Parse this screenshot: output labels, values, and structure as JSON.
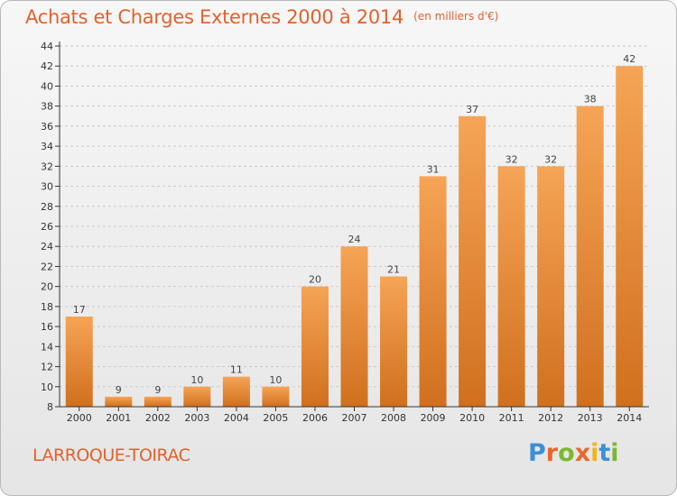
{
  "header": {
    "title": "Achats et Charges Externes 2000 à 2014",
    "subtitle": "(en milliers d'€)"
  },
  "footer": {
    "commune": "LARROQUE-TOIRAC",
    "logo_text": "Proxiti",
    "logo_letters": [
      {
        "char": "P",
        "color": "#3c8fd6"
      },
      {
        "char": "r",
        "color": "#e8672a"
      },
      {
        "char": "o",
        "color": "#7cb82f"
      },
      {
        "char": "x",
        "color": "#e8672a"
      },
      {
        "char": "i",
        "color": "#f0b41e"
      },
      {
        "char": "t",
        "color": "#3c8fd6"
      },
      {
        "char": "i",
        "color": "#7cb82f"
      }
    ]
  },
  "colors": {
    "accent": "#e0622e",
    "bar_light": "#f6a456",
    "bar_dark": "#d0701e",
    "axis": "#333333",
    "grid": "#cccccc"
  },
  "chart_data": {
    "type": "bar",
    "title": "Achats et Charges Externes 2000 à 2014",
    "subtitle": "(en milliers d'€)",
    "xlabel": "",
    "ylabel": "",
    "categories": [
      "2000",
      "2001",
      "2002",
      "2003",
      "2004",
      "2005",
      "2006",
      "2007",
      "2008",
      "2009",
      "2010",
      "2011",
      "2012",
      "2013",
      "2014"
    ],
    "values": [
      17,
      9,
      9,
      10,
      11,
      10,
      20,
      24,
      21,
      31,
      37,
      32,
      32,
      38,
      42
    ],
    "ylim": [
      8,
      44
    ],
    "yticks": [
      8,
      10,
      12,
      14,
      16,
      18,
      20,
      22,
      24,
      26,
      28,
      30,
      32,
      34,
      36,
      38,
      40,
      42,
      44
    ],
    "grid": true,
    "legend": "none"
  }
}
